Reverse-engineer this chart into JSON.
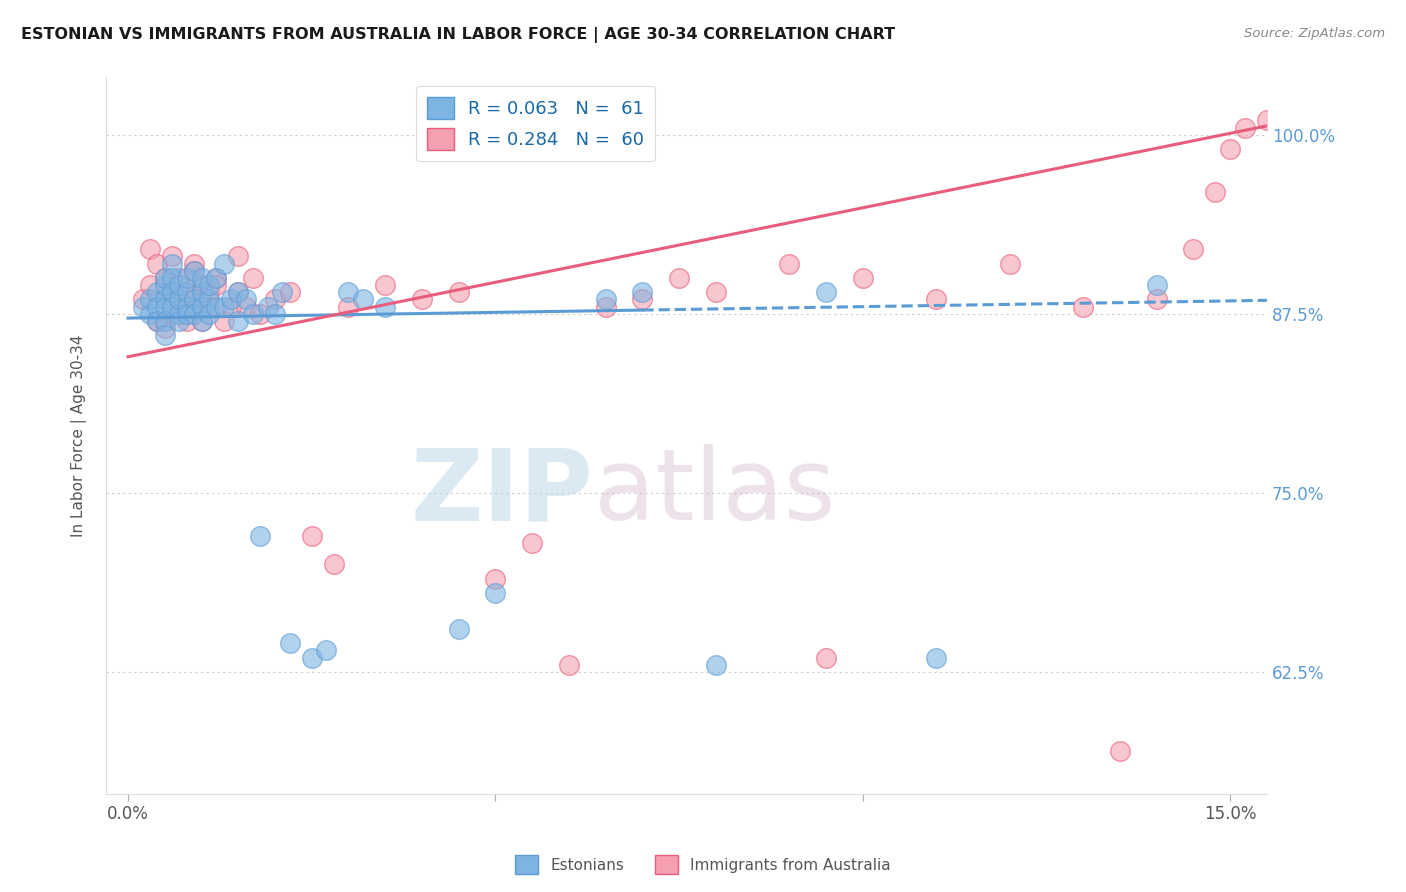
{
  "title": "ESTONIAN VS IMMIGRANTS FROM AUSTRALIA IN LABOR FORCE | AGE 30-34 CORRELATION CHART",
  "source": "Source: ZipAtlas.com",
  "ylabel_label": "In Labor Force | Age 30-34",
  "xlim_min": -0.3,
  "xlim_max": 15.5,
  "ylim_min": 54.0,
  "ylim_max": 104.0,
  "ytick_positions": [
    62.5,
    75.0,
    87.5,
    100.0
  ],
  "ytick_labels": [
    "62.5%",
    "75.0%",
    "87.5%",
    "100.0%"
  ],
  "color_estonian": "#7EB4E2",
  "color_immigrant": "#F4A0B0",
  "color_line_estonian": "#5B9BD5",
  "color_line_immigrant": "#E95C7B",
  "watermark_zip": "ZIP",
  "watermark_atlas": "atlas",
  "legend_label_est": "R = 0.063   N =  61",
  "legend_label_imm": "R = 0.284   N =  60",
  "bottom_label_est": "Estonians",
  "bottom_label_imm": "Immigrants from Australia",
  "scatter_estonian_x": [
    0.2,
    0.3,
    0.3,
    0.4,
    0.4,
    0.4,
    0.5,
    0.5,
    0.5,
    0.5,
    0.5,
    0.5,
    0.6,
    0.6,
    0.6,
    0.6,
    0.7,
    0.7,
    0.7,
    0.7,
    0.8,
    0.8,
    0.8,
    0.8,
    0.9,
    0.9,
    0.9,
    1.0,
    1.0,
    1.0,
    1.0,
    1.1,
    1.1,
    1.1,
    1.2,
    1.2,
    1.3,
    1.3,
    1.4,
    1.5,
    1.5,
    1.6,
    1.7,
    1.8,
    1.9,
    2.0,
    2.1,
    2.2,
    2.5,
    2.7,
    3.0,
    3.2,
    3.5,
    4.5,
    5.0,
    6.5,
    7.0,
    8.0,
    9.5,
    11.0,
    14.0
  ],
  "scatter_estonian_y": [
    88.0,
    87.5,
    88.5,
    89.0,
    88.0,
    87.0,
    88.5,
    89.5,
    90.0,
    88.0,
    87.0,
    86.0,
    91.0,
    90.0,
    89.0,
    88.0,
    87.5,
    88.5,
    89.5,
    87.0,
    88.0,
    89.0,
    90.0,
    87.5,
    90.5,
    88.5,
    87.5,
    88.0,
    89.0,
    90.0,
    87.0,
    88.5,
    87.5,
    89.5,
    88.0,
    90.0,
    91.0,
    88.0,
    88.5,
    87.0,
    89.0,
    88.5,
    87.5,
    72.0,
    88.0,
    87.5,
    89.0,
    64.5,
    63.5,
    64.0,
    89.0,
    88.5,
    88.0,
    65.5,
    68.0,
    88.5,
    89.0,
    63.0,
    89.0,
    63.5,
    89.5
  ],
  "scatter_immigrant_x": [
    0.2,
    0.3,
    0.3,
    0.4,
    0.4,
    0.5,
    0.5,
    0.5,
    0.6,
    0.6,
    0.6,
    0.7,
    0.7,
    0.8,
    0.8,
    0.9,
    0.9,
    0.9,
    1.0,
    1.0,
    1.0,
    1.1,
    1.1,
    1.2,
    1.2,
    1.3,
    1.4,
    1.5,
    1.5,
    1.6,
    1.7,
    1.8,
    2.0,
    2.2,
    2.5,
    2.8,
    3.0,
    3.5,
    4.0,
    4.5,
    5.0,
    5.5,
    6.0,
    6.5,
    7.0,
    7.5,
    8.0,
    9.0,
    9.5,
    10.0,
    11.0,
    12.0,
    13.0,
    13.5,
    14.0,
    14.5,
    14.8,
    15.0,
    15.2,
    15.5
  ],
  "scatter_immigrant_y": [
    88.5,
    92.0,
    89.5,
    91.0,
    87.0,
    90.0,
    88.5,
    86.5,
    91.5,
    89.0,
    87.5,
    90.0,
    88.5,
    89.0,
    87.0,
    91.0,
    90.5,
    88.5,
    88.0,
    87.0,
    89.5,
    89.0,
    88.0,
    90.0,
    89.5,
    87.0,
    88.0,
    91.5,
    89.0,
    88.0,
    90.0,
    87.5,
    88.5,
    89.0,
    72.0,
    70.0,
    88.0,
    89.5,
    88.5,
    89.0,
    69.0,
    71.5,
    63.0,
    88.0,
    88.5,
    90.0,
    89.0,
    91.0,
    63.5,
    90.0,
    88.5,
    91.0,
    88.0,
    57.0,
    88.5,
    92.0,
    96.0,
    99.0,
    100.5,
    101.0
  ],
  "est_trendline_x0": 0.0,
  "est_trendline_x_solid_end": 7.0,
  "est_trendline_x_end": 15.5,
  "est_trendline_y0": 87.2,
  "est_trendline_slope": 0.08,
  "imm_trendline_x0": 0.0,
  "imm_trendline_x_end": 15.5,
  "imm_trendline_y0": 84.5,
  "imm_trendline_slope": 1.04
}
